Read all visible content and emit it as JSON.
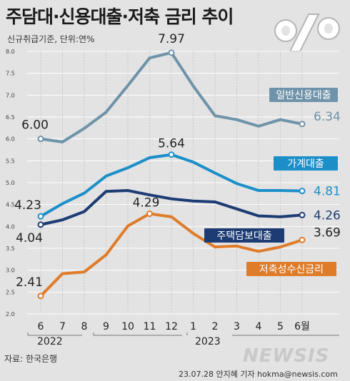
{
  "title": "주담대·신용대출·저축 금리 추이",
  "subtitle": "신규취급기준, 단위:연%",
  "source": "자료: 한국은행",
  "credit": "23.07.28 안지혜 기자 hokma@newsis.com",
  "watermark": "NEWSIS",
  "chart_data": {
    "type": "line",
    "categories": [
      "6",
      "7",
      "8",
      "9",
      "10",
      "11",
      "12",
      "1",
      "2",
      "3",
      "4",
      "5",
      "6월"
    ],
    "year_labels": [
      "2022",
      "2023"
    ],
    "ylim": [
      2.0,
      8.0
    ],
    "yticks": [
      "2.0",
      "2.5",
      "3.0",
      "3.5",
      "4.0",
      "4.5",
      "5.0",
      "5.5",
      "6.0",
      "6.5",
      "7.0",
      "7.5",
      "8.0"
    ],
    "grid": true,
    "series": [
      {
        "name": "일반신용대출",
        "color": "#6f93a9",
        "values": [
          6.0,
          5.93,
          6.24,
          6.61,
          7.22,
          7.85,
          7.97,
          7.21,
          6.53,
          6.44,
          6.29,
          6.44,
          6.34
        ]
      },
      {
        "name": "가계대출",
        "color": "#1c8fc9",
        "values": [
          4.23,
          4.52,
          4.76,
          5.15,
          5.34,
          5.57,
          5.64,
          5.47,
          5.22,
          4.98,
          4.82,
          4.82,
          4.81
        ]
      },
      {
        "name": "주택담보대출",
        "color": "#1d3c74",
        "values": [
          4.04,
          4.15,
          4.34,
          4.8,
          4.82,
          4.72,
          4.63,
          4.58,
          4.56,
          4.4,
          4.24,
          4.22,
          4.26
        ]
      },
      {
        "name": "저축성수신금리",
        "color": "#de7c2a",
        "values": [
          2.41,
          2.92,
          2.96,
          3.35,
          4.01,
          4.29,
          4.22,
          3.84,
          3.53,
          3.55,
          3.43,
          3.53,
          3.69
        ]
      }
    ],
    "point_labels": [
      {
        "series": 0,
        "index": 0,
        "text": "6.00"
      },
      {
        "series": 0,
        "index": 6,
        "text": "7.97"
      },
      {
        "series": 0,
        "index": 12,
        "text": "6.34"
      },
      {
        "series": 1,
        "index": 0,
        "text": "4.23"
      },
      {
        "series": 1,
        "index": 6,
        "text": "5.64"
      },
      {
        "series": 1,
        "index": 12,
        "text": "4.81"
      },
      {
        "series": 2,
        "index": 0,
        "text": "4.04"
      },
      {
        "series": 2,
        "index": 12,
        "text": "4.26"
      },
      {
        "series": 3,
        "index": 0,
        "text": "2.41"
      },
      {
        "series": 3,
        "index": 5,
        "text": "4.29"
      },
      {
        "series": 3,
        "index": 12,
        "text": "3.69"
      }
    ]
  }
}
